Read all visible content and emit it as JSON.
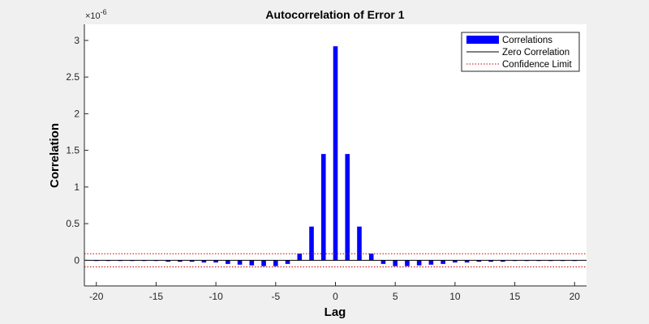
{
  "chart_data": {
    "type": "bar",
    "title": "Autocorrelation of Error 1",
    "xlabel": "Lag",
    "ylabel": "Correlation",
    "y_exponent_label": "×10",
    "y_exponent_power": "-6",
    "xlim": [
      -21,
      21
    ],
    "ylim": [
      -0.35,
      3.22
    ],
    "x_ticks": [
      -20,
      -15,
      -10,
      -5,
      0,
      5,
      10,
      15,
      20
    ],
    "x_tick_labels": [
      "-20",
      "-15",
      "-10",
      "-5",
      "0",
      "5",
      "10",
      "15",
      "20"
    ],
    "y_ticks": [
      0,
      0.5,
      1,
      1.5,
      2,
      2.5,
      3
    ],
    "y_tick_labels": [
      "0",
      "0.5",
      "1",
      "1.5",
      "2",
      "2.5",
      "3"
    ],
    "lags": [
      -20,
      -19,
      -18,
      -17,
      -16,
      -15,
      -14,
      -13,
      -12,
      -11,
      -10,
      -9,
      -8,
      -7,
      -6,
      -5,
      -4,
      -3,
      -2,
      -1,
      0,
      1,
      2,
      3,
      4,
      5,
      6,
      7,
      8,
      9,
      10,
      11,
      12,
      13,
      14,
      15,
      16,
      17,
      18,
      19,
      20
    ],
    "series": [
      {
        "name": "Correlations",
        "color": "#0000ff",
        "values": [
          -0.01,
          -0.01,
          -0.01,
          -0.01,
          -0.01,
          -0.01,
          -0.02,
          -0.02,
          -0.02,
          -0.03,
          -0.03,
          -0.05,
          -0.06,
          -0.07,
          -0.08,
          -0.08,
          -0.05,
          0.09,
          0.46,
          1.45,
          2.92,
          1.45,
          0.46,
          0.09,
          -0.05,
          -0.08,
          -0.08,
          -0.07,
          -0.06,
          -0.05,
          -0.03,
          -0.03,
          -0.02,
          -0.02,
          -0.02,
          -0.01,
          -0.01,
          -0.01,
          -0.01,
          -0.01,
          -0.01
        ]
      },
      {
        "name": "Zero Correlation",
        "color": "#000000",
        "value": 0
      },
      {
        "name": "Confidence Limit",
        "color": "#c00000",
        "values": [
          0.09,
          -0.09
        ]
      }
    ],
    "grid": false,
    "legend_position": "top-right"
  }
}
